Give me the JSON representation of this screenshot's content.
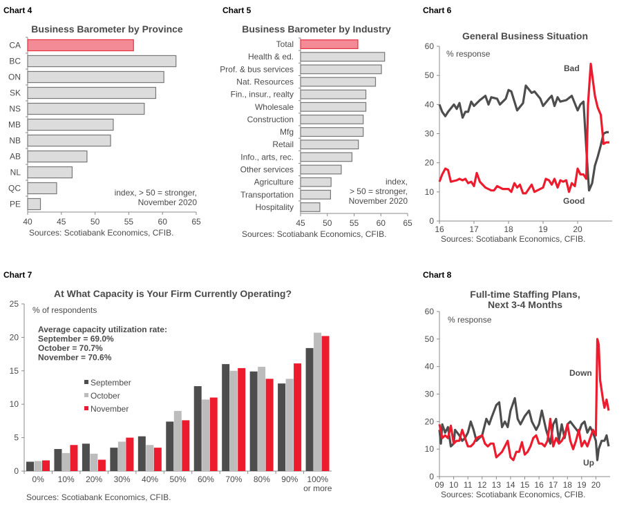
{
  "colors": {
    "highlight_fill": "#f28b95",
    "highlight_stroke": "#e8303f",
    "bar_fill": "#dcdcdc",
    "bar_stroke": "#777777",
    "dark": "#4d4d4d",
    "light": "#bcbcbc",
    "red": "#ec1c2e"
  },
  "chart_data": [
    {
      "panel": "Chart 4",
      "type": "bar",
      "orientation": "horizontal",
      "title": "Business Barometer by Province",
      "categories": [
        "CA",
        "BC",
        "ON",
        "SK",
        "NS",
        "MB",
        "NB",
        "AB",
        "NL",
        "QC",
        "PE"
      ],
      "values": [
        55.7,
        62.0,
        60.2,
        59.0,
        57.3,
        52.7,
        52.3,
        48.8,
        46.6,
        44.3,
        41.9
      ],
      "highlight": "CA",
      "xlim": [
        40,
        65
      ],
      "xticks": [
        "40",
        "45",
        "50",
        "55",
        "60",
        "65"
      ],
      "annotations": [
        "index, > 50 = stronger,",
        "November 2020"
      ],
      "source": "Sources: Scotiabank Economics, CFIB."
    },
    {
      "panel": "Chart 5",
      "type": "bar",
      "orientation": "horizontal",
      "title": "Business Barometer by Industry",
      "categories": [
        "Total",
        "Health & ed.",
        "Prof. & bus services",
        "Nat. Resources",
        "Fin., insur., realty",
        "Wholesale",
        "Construction",
        "Mfg",
        "Retail",
        "Info., arts, rec.",
        "Other services",
        "Agriculture",
        "Transportation",
        "Hospitality"
      ],
      "values": [
        55.7,
        60.7,
        60.1,
        59.0,
        57.2,
        57.2,
        56.7,
        56.7,
        55.8,
        54.6,
        52.6,
        50.7,
        50.6,
        48.6
      ],
      "highlight": "Total",
      "xlim": [
        45,
        65
      ],
      "xticks": [
        "45",
        "50",
        "55",
        "60",
        "65"
      ],
      "annotations": [
        "index,",
        "> 50 = stronger,",
        "November 2020"
      ],
      "source": "Sources: Scotiabank Economics, CFIB."
    },
    {
      "panel": "Chart 6",
      "type": "line",
      "title": "General Business Situation",
      "ylabel": "% response",
      "ylim": [
        0,
        60
      ],
      "yticks": [
        "0",
        "10",
        "20",
        "30",
        "40",
        "50",
        "60"
      ],
      "xlim": [
        2016,
        2021
      ],
      "xticks": [
        "16",
        "17",
        "18",
        "19",
        "20"
      ],
      "series": [
        {
          "name": "Good",
          "color": "#4d4d4d",
          "x": [
            2016.0,
            2016.08,
            2016.17,
            2016.25,
            2016.42,
            2016.5,
            2016.58,
            2016.67,
            2016.75,
            2016.83,
            2016.92,
            2017.0,
            2017.17,
            2017.33,
            2017.42,
            2017.5,
            2017.67,
            2017.75,
            2017.92,
            2018.0,
            2018.08,
            2018.25,
            2018.42,
            2018.5,
            2018.67,
            2018.75,
            2018.92,
            2019.0,
            2019.17,
            2019.25,
            2019.33,
            2019.42,
            2019.5,
            2019.67,
            2019.83,
            2020.0,
            2020.08,
            2020.17,
            2020.25,
            2020.33,
            2020.42,
            2020.5,
            2020.58,
            2020.67,
            2020.75,
            2020.83,
            2020.9
          ],
          "y": [
            40,
            37.5,
            36,
            37.5,
            40,
            38.5,
            40.5,
            35.5,
            37.5,
            37.5,
            41,
            39.5,
            41.5,
            43,
            40,
            42.5,
            42,
            40,
            42,
            45,
            44.5,
            38,
            40.5,
            46.5,
            44,
            44.5,
            42,
            39.5,
            42,
            43,
            39.5,
            42.5,
            41,
            41.5,
            43,
            38,
            40,
            41,
            25,
            10.5,
            13,
            19,
            22,
            26,
            30,
            30.5,
            30.5
          ]
        },
        {
          "name": "Bad",
          "color": "#ec1c2e",
          "x": [
            2016.0,
            2016.08,
            2016.17,
            2016.25,
            2016.33,
            2016.5,
            2016.58,
            2016.67,
            2016.75,
            2016.83,
            2016.92,
            2017.0,
            2017.08,
            2017.17,
            2017.33,
            2017.5,
            2017.58,
            2017.67,
            2017.83,
            2018.0,
            2018.08,
            2018.17,
            2018.25,
            2018.33,
            2018.42,
            2018.5,
            2018.67,
            2018.75,
            2019.0,
            2019.08,
            2019.17,
            2019.25,
            2019.33,
            2019.42,
            2019.5,
            2019.58,
            2019.67,
            2019.75,
            2019.83,
            2019.92,
            2020.0,
            2020.08,
            2020.17,
            2020.25,
            2020.3,
            2020.38,
            2020.5,
            2020.58,
            2020.67,
            2020.75,
            2020.83,
            2020.92
          ],
          "y": [
            13.5,
            16,
            18,
            17.5,
            13.5,
            14,
            14.5,
            14,
            14.5,
            13,
            13.5,
            12,
            16.5,
            13.5,
            11.5,
            10.5,
            10.5,
            12,
            11,
            11,
            10,
            13,
            11.5,
            12.5,
            9.5,
            9.5,
            12.5,
            10,
            11.5,
            14.5,
            14,
            12.5,
            14.5,
            11.5,
            14,
            13.5,
            14,
            10,
            13,
            12,
            18,
            16,
            16,
            14.5,
            40,
            54,
            43,
            39,
            36.5,
            26.5,
            27,
            27
          ]
        }
      ],
      "annotations": [
        "Bad",
        "Good"
      ],
      "source": "Sources: Scotiabank Economics, CFIB."
    },
    {
      "panel": "Chart 7",
      "type": "bar",
      "title": "At What Capacity is Your Firm Currently Operating?",
      "ylabel": "% of respondents",
      "ylim": [
        0,
        25
      ],
      "yticks": [
        "0",
        "5",
        "10",
        "15",
        "20",
        "25"
      ],
      "categories": [
        "0%",
        "10%",
        "20%",
        "30%",
        "40%",
        "50%",
        "60%",
        "70%",
        "80%",
        "90%",
        "100%"
      ],
      "last_category_line2": "or more",
      "series": [
        {
          "name": "September",
          "color": "#4d4d4d",
          "values": [
            1.4,
            3.3,
            4.1,
            3.5,
            5.2,
            7.4,
            12.7,
            16.0,
            14.9,
            13.1,
            18.4
          ]
        },
        {
          "name": "October",
          "color": "#bcbcbc",
          "values": [
            1.5,
            2.7,
            2.6,
            4.4,
            3.9,
            9.0,
            10.7,
            15.0,
            15.6,
            13.8,
            20.7
          ]
        },
        {
          "name": "November",
          "color": "#ec1c2e",
          "values": [
            1.6,
            3.9,
            1.7,
            5.0,
            3.5,
            7.6,
            11.0,
            15.4,
            13.8,
            16.1,
            20.2
          ]
        }
      ],
      "annotations": [
        "Average capacity utilization rate:",
        "September = 69.0%",
        "October = 70.7%",
        "November = 70.6%"
      ],
      "legend": "left-center",
      "source": "Sources: Scotiabank Economics, CFIB."
    },
    {
      "panel": "Chart 8",
      "type": "line",
      "title": [
        "Full-time Staffing Plans,",
        "Next 3-4 Months"
      ],
      "ylabel": "% response",
      "ylim": [
        0,
        60
      ],
      "yticks": [
        "0",
        "10",
        "20",
        "30",
        "40",
        "50",
        "60"
      ],
      "xlim": [
        2009,
        2021
      ],
      "xticks": [
        "09",
        "10",
        "11",
        "12",
        "13",
        "14",
        "15",
        "16",
        "17",
        "18",
        "19",
        "20"
      ],
      "series": [
        {
          "name": "Up",
          "color": "#4d4d4d",
          "x": [
            2009,
            2009.1,
            2009.2,
            2009.4,
            2009.6,
            2009.8,
            2010,
            2010.1,
            2010.4,
            2010.6,
            2010.8,
            2011,
            2011.2,
            2011.4,
            2011.6,
            2011.8,
            2012,
            2012.3,
            2012.5,
            2012.7,
            2013,
            2013.2,
            2013.4,
            2013.6,
            2013.8,
            2014,
            2014.3,
            2014.5,
            2014.7,
            2015,
            2015.3,
            2015.5,
            2015.8,
            2016,
            2016.2,
            2016.5,
            2016.8,
            2017,
            2017.2,
            2017.4,
            2017.6,
            2017.8,
            2018,
            2018.2,
            2018.5,
            2018.8,
            2019,
            2019.2,
            2019.4,
            2019.6,
            2019.8,
            2020,
            2020.1,
            2020.2,
            2020.4,
            2020.6,
            2020.75,
            2020.9
          ],
          "y": [
            17,
            12,
            19,
            16,
            18,
            11,
            12,
            17,
            15,
            13,
            14,
            16,
            20,
            17,
            13,
            14,
            15,
            21,
            19,
            22,
            26,
            27,
            18,
            20,
            18,
            24,
            28.5,
            21,
            19,
            22,
            24,
            20,
            17,
            19,
            24,
            17,
            12,
            19,
            21,
            13,
            19,
            14,
            19,
            20,
            18,
            16,
            19,
            20,
            16,
            18,
            16,
            13,
            6,
            10,
            13,
            13,
            15,
            11
          ]
        },
        {
          "name": "Down",
          "color": "#ec1c2e",
          "x": [
            2009,
            2009.2,
            2009.4,
            2009.6,
            2009.8,
            2010,
            2010.2,
            2010.4,
            2010.6,
            2010.8,
            2011,
            2011.2,
            2011.4,
            2011.6,
            2012,
            2012.2,
            2012.4,
            2012.6,
            2012.8,
            2013,
            2013.2,
            2013.4,
            2013.6,
            2013.8,
            2014,
            2014.2,
            2014.4,
            2014.6,
            2014.8,
            2015,
            2015.2,
            2015.4,
            2015.6,
            2015.8,
            2016,
            2016.2,
            2016.4,
            2016.6,
            2016.8,
            2017,
            2017.2,
            2017.4,
            2017.6,
            2017.8,
            2018,
            2018.2,
            2018.4,
            2018.6,
            2018.8,
            2019,
            2019.2,
            2019.4,
            2019.6,
            2019.8,
            2020,
            2020.1,
            2020.2,
            2020.3,
            2020.5,
            2020.6,
            2020.75,
            2020.9
          ],
          "y": [
            19,
            14,
            15,
            14,
            18.5,
            12,
            13,
            13,
            17,
            14,
            11,
            11,
            12,
            14,
            15,
            12,
            11,
            12,
            12,
            7,
            8,
            9,
            11,
            13,
            7,
            6,
            9,
            9,
            12.5,
            8,
            9,
            11,
            14,
            15,
            12,
            12,
            11,
            13,
            21,
            11,
            14,
            12,
            13,
            15,
            19,
            13,
            10,
            13,
            17,
            11,
            13,
            11,
            14,
            17,
            15,
            50,
            48,
            35,
            28,
            25,
            28,
            24
          ]
        }
      ],
      "annotations": [
        "Down",
        "Up"
      ],
      "source": "Sources: Scotiabank Economics, CFIB."
    }
  ]
}
